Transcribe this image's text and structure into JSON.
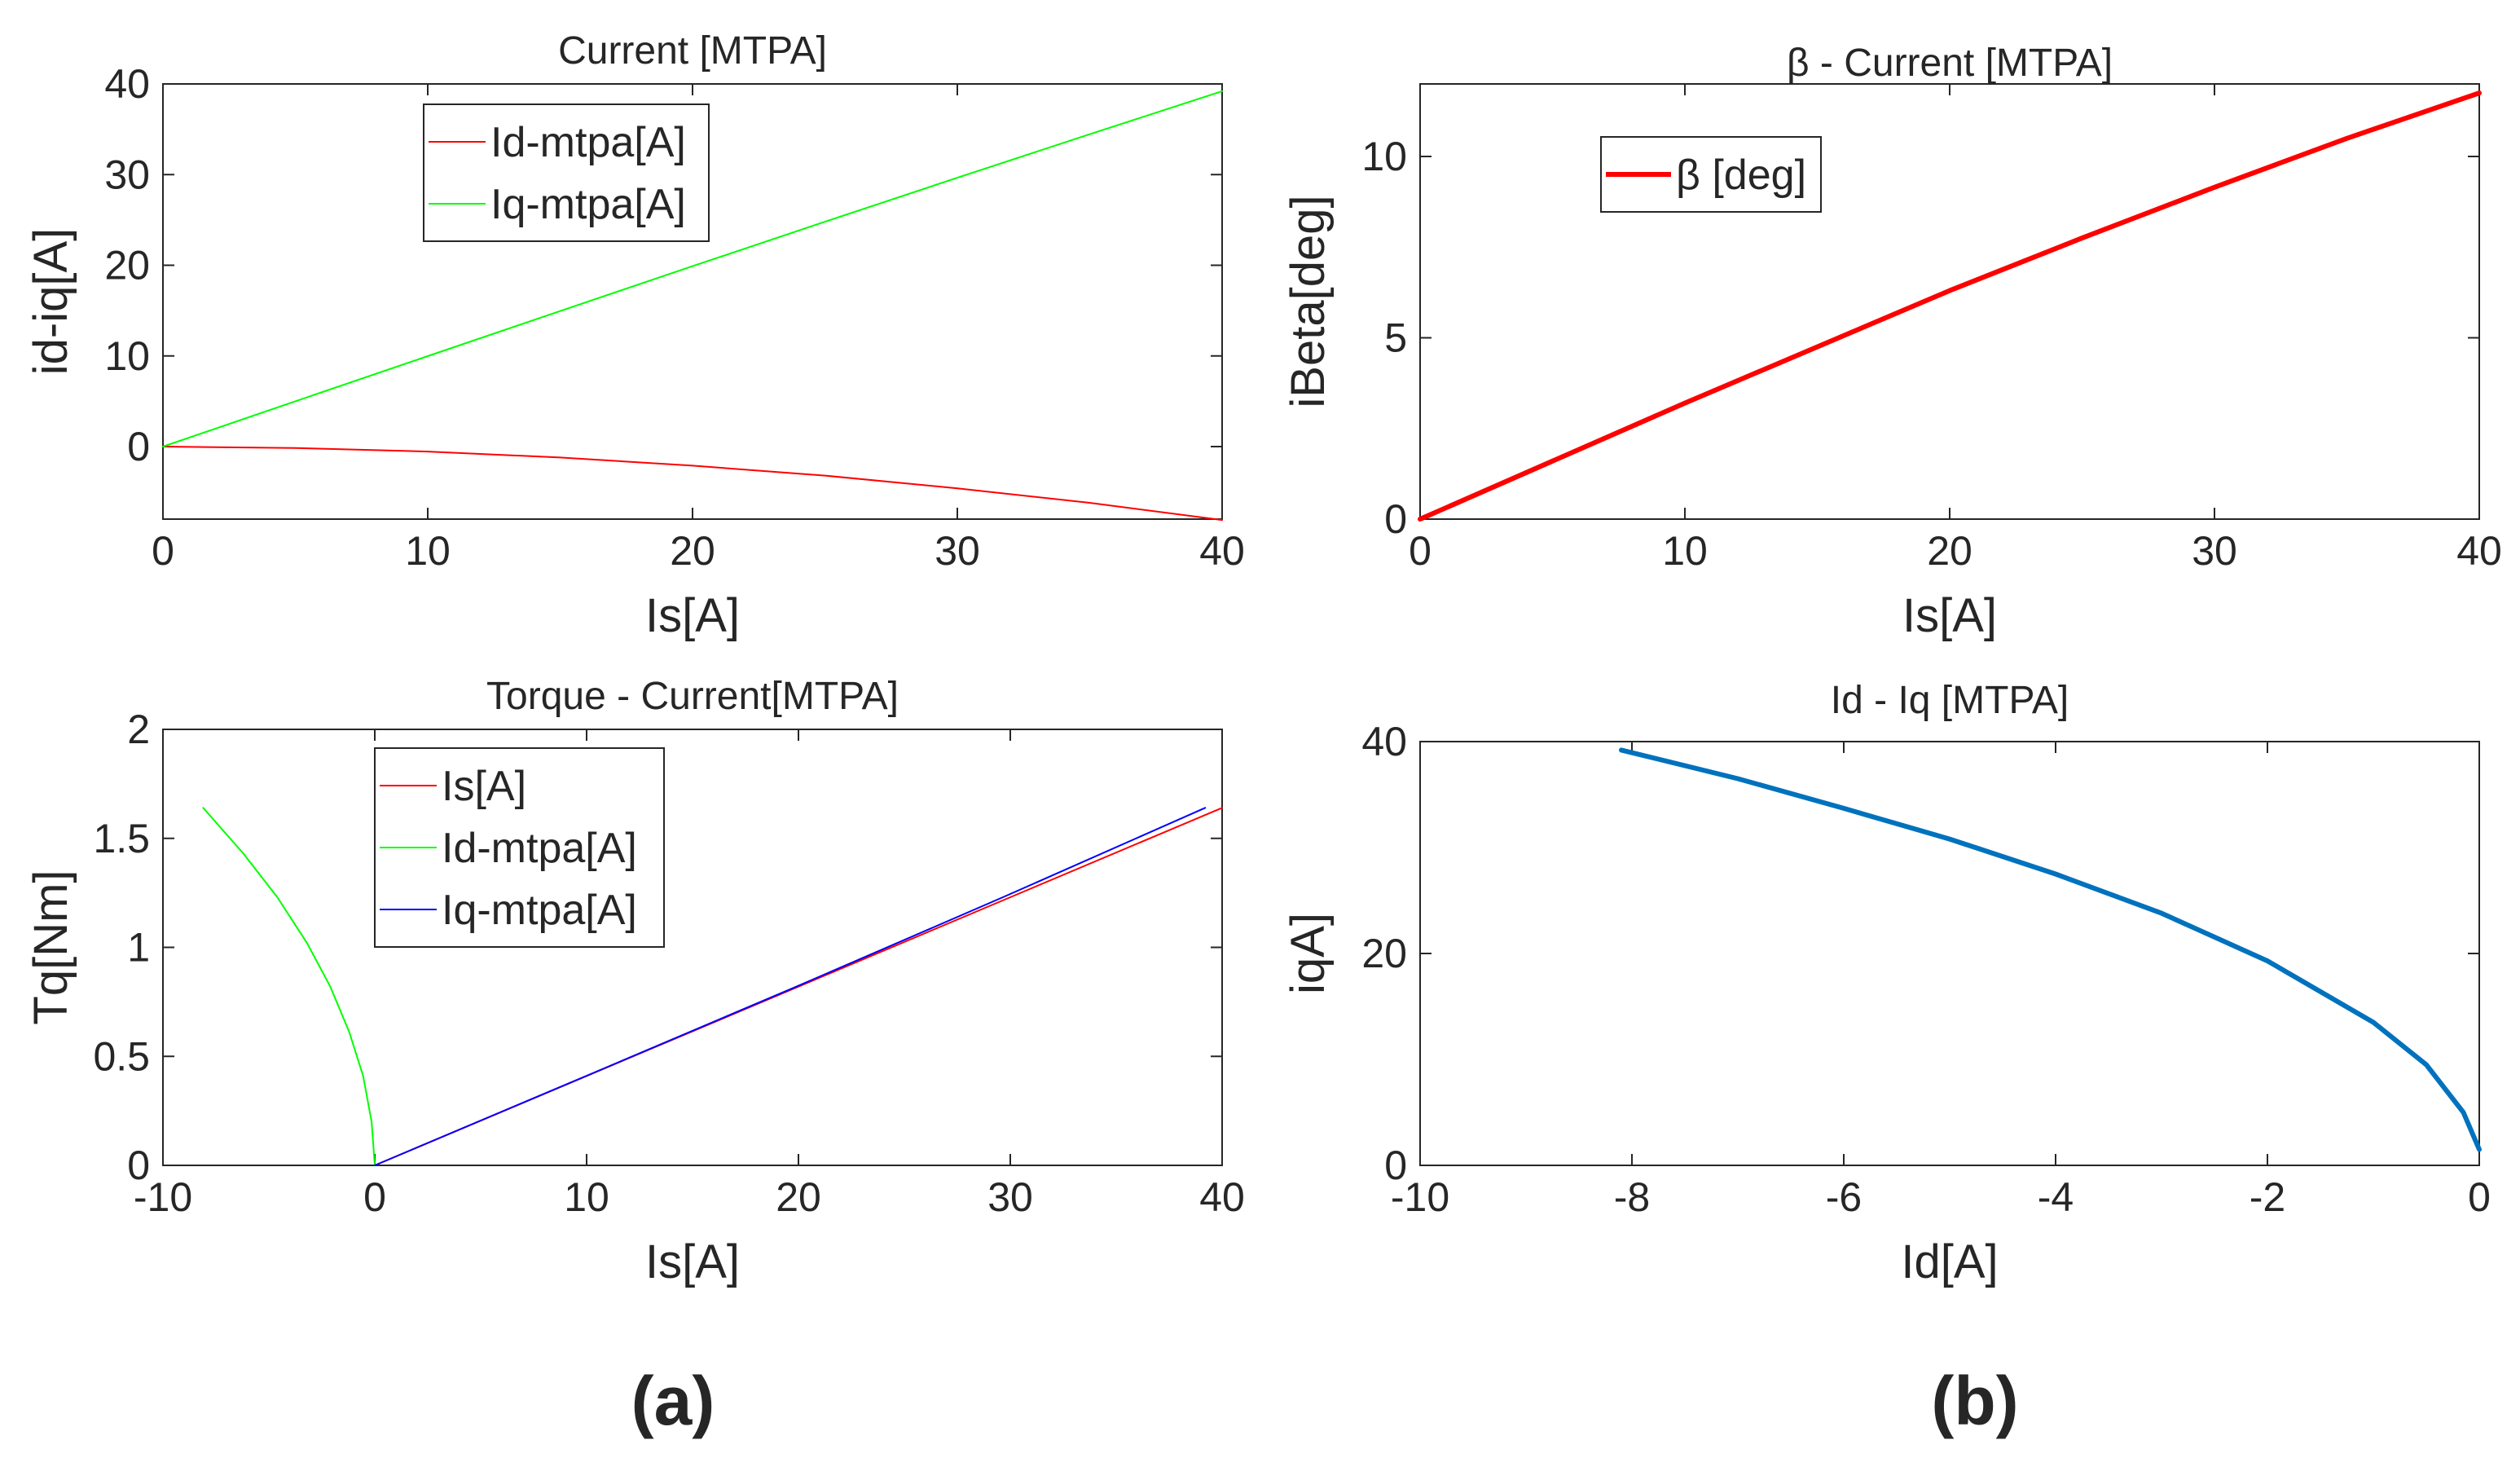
{
  "panel_labels": [
    "(a)",
    "(b)"
  ],
  "chart_data": [
    {
      "type": "line",
      "title": "Current [MTPA]",
      "xlabel": "Is[A]",
      "ylabel": "id-iq[A]",
      "xlim": [
        0,
        40
      ],
      "ylim": [
        -8,
        40
      ],
      "xticks": [
        0,
        10,
        20,
        30,
        40
      ],
      "yticks": [
        0,
        10,
        20,
        30,
        40
      ],
      "grid": false,
      "legend": "top-left",
      "series": [
        {
          "name": "Id-mtpa[A]",
          "color": "#ff0000",
          "x": [
            0,
            5,
            10,
            15,
            20,
            25,
            30,
            35,
            40
          ],
          "y": [
            0,
            -0.15,
            -0.55,
            -1.2,
            -2.1,
            -3.2,
            -4.6,
            -6.2,
            -8.1
          ]
        },
        {
          "name": "Iq-mtpa[A]",
          "color": "#00ff00",
          "x": [
            0,
            5,
            10,
            15,
            20,
            25,
            30,
            35,
            40
          ],
          "y": [
            0,
            5.0,
            9.98,
            14.95,
            19.9,
            24.8,
            29.65,
            34.45,
            39.2
          ]
        }
      ]
    },
    {
      "type": "line",
      "title": "β - Current [MTPA]",
      "xlabel": "Is[A]",
      "ylabel": "iBeta[deg]",
      "xlim": [
        0,
        40
      ],
      "ylim": [
        0,
        12
      ],
      "xticks": [
        0,
        10,
        20,
        30,
        40
      ],
      "yticks": [
        0,
        5,
        10
      ],
      "grid": false,
      "legend": "top-left",
      "series": [
        {
          "name": "β [deg]",
          "color": "#ff0000",
          "x": [
            0,
            5,
            10,
            15,
            20,
            25,
            30,
            35,
            40
          ],
          "y": [
            0,
            1.6,
            3.2,
            4.75,
            6.3,
            7.75,
            9.15,
            10.5,
            11.75
          ]
        }
      ]
    },
    {
      "type": "line",
      "title": "Torque - Current[MTPA]",
      "xlabel": "Is[A]",
      "ylabel": "Tq[Nm]",
      "xlim": [
        -10,
        40
      ],
      "ylim": [
        0,
        2
      ],
      "xticks": [
        -10,
        0,
        10,
        20,
        30,
        40
      ],
      "yticks": [
        0,
        0.5,
        1,
        1.5,
        2
      ],
      "grid": false,
      "legend": "top-left",
      "series": [
        {
          "name": "Is[A]",
          "color": "#ff0000",
          "x": [
            0,
            10,
            20,
            30,
            40
          ],
          "y": [
            0,
            0.41,
            0.82,
            1.23,
            1.64
          ]
        },
        {
          "name": "Id-mtpa[A]",
          "color": "#00ff00",
          "x": [
            -8.1,
            -6.2,
            -4.6,
            -3.2,
            -2.1,
            -1.2,
            -0.55,
            -0.15,
            0
          ],
          "y": [
            1.64,
            1.43,
            1.23,
            1.02,
            0.82,
            0.61,
            0.41,
            0.2,
            0
          ]
        },
        {
          "name": "Iq-mtpa[A]",
          "color": "#0000ff",
          "x": [
            0,
            9.98,
            19.9,
            29.65,
            39.2
          ],
          "y": [
            0,
            0.41,
            0.82,
            1.23,
            1.64
          ]
        }
      ]
    },
    {
      "type": "line",
      "title": "Id - Iq [MTPA]",
      "xlabel": "Id[A]",
      "ylabel": "iqA]",
      "xlim": [
        -10,
        0
      ],
      "ylim": [
        0,
        40
      ],
      "xticks": [
        -10,
        -8,
        -6,
        -4,
        -2,
        0
      ],
      "yticks": [
        0,
        20,
        40
      ],
      "grid": false,
      "legend": "none",
      "series": [
        {
          "name": "",
          "color": "#0072bd",
          "x": [
            -8.1,
            -7,
            -6,
            -5,
            -4,
            -3,
            -2,
            -1,
            -0.5,
            -0.15,
            0
          ],
          "y": [
            39.2,
            36.5,
            33.7,
            30.8,
            27.5,
            23.8,
            19.3,
            13.5,
            9.5,
            5.0,
            1.5
          ]
        }
      ]
    }
  ]
}
